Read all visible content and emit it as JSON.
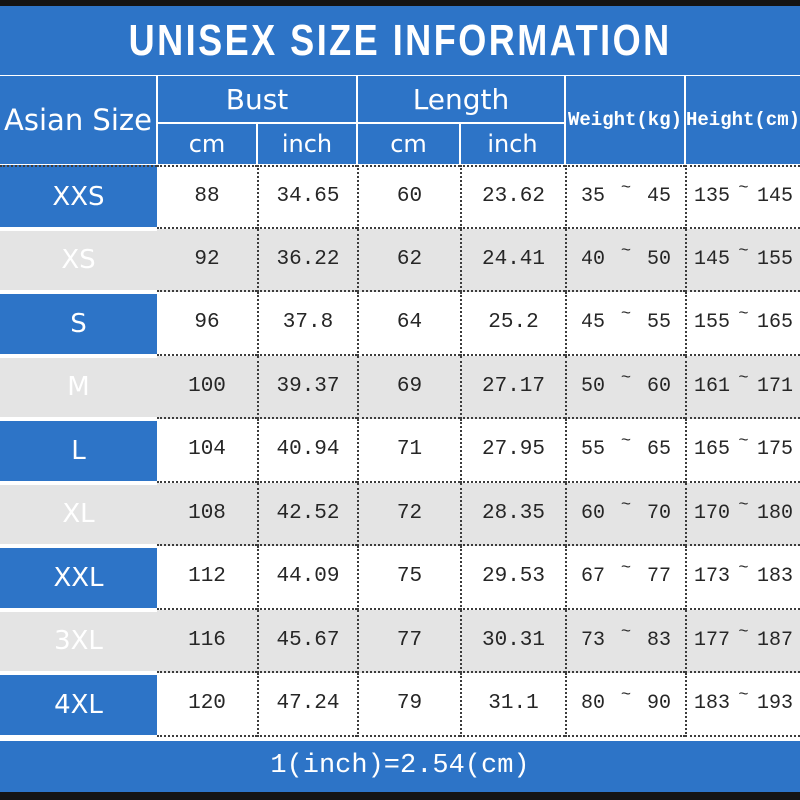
{
  "title": "UNISEX SIZE INFORMATION",
  "tilde": "~",
  "footer_note": "1(inch)=2.54(cm)",
  "colors": {
    "accent_blue": "#2d74c7",
    "alt_row_gray": "#e4e4e4",
    "edge_black": "#141414"
  },
  "table": {
    "corner_label": "Asian Size",
    "bust_group_label": "Bust",
    "length_group_label": "Length",
    "weight_label": "Weight(kg)",
    "height_label": "Height(cm)",
    "sub_headers": {
      "bust_cm": "cm",
      "bust_inch": "inch",
      "length_cm": "cm",
      "length_inch": "inch"
    },
    "rows": [
      {
        "size": "XXS",
        "bust_cm": "88",
        "bust_inch": "34.65",
        "length_cm": "60",
        "length_inch": "23.62",
        "weight_min": "35",
        "weight_max": "45",
        "height_min": "135",
        "height_max": "145"
      },
      {
        "size": "XS",
        "bust_cm": "92",
        "bust_inch": "36.22",
        "length_cm": "62",
        "length_inch": "24.41",
        "weight_min": "40",
        "weight_max": "50",
        "height_min": "145",
        "height_max": "155"
      },
      {
        "size": "S",
        "bust_cm": "96",
        "bust_inch": "37.8",
        "length_cm": "64",
        "length_inch": "25.2",
        "weight_min": "45",
        "weight_max": "55",
        "height_min": "155",
        "height_max": "165"
      },
      {
        "size": "M",
        "bust_cm": "100",
        "bust_inch": "39.37",
        "length_cm": "69",
        "length_inch": "27.17",
        "weight_min": "50",
        "weight_max": "60",
        "height_min": "161",
        "height_max": "171"
      },
      {
        "size": "L",
        "bust_cm": "104",
        "bust_inch": "40.94",
        "length_cm": "71",
        "length_inch": "27.95",
        "weight_min": "55",
        "weight_max": "65",
        "height_min": "165",
        "height_max": "175"
      },
      {
        "size": "XL",
        "bust_cm": "108",
        "bust_inch": "42.52",
        "length_cm": "72",
        "length_inch": "28.35",
        "weight_min": "60",
        "weight_max": "70",
        "height_min": "170",
        "height_max": "180"
      },
      {
        "size": "XXL",
        "bust_cm": "112",
        "bust_inch": "44.09",
        "length_cm": "75",
        "length_inch": "29.53",
        "weight_min": "67",
        "weight_max": "77",
        "height_min": "173",
        "height_max": "183"
      },
      {
        "size": "3XL",
        "bust_cm": "116",
        "bust_inch": "45.67",
        "length_cm": "77",
        "length_inch": "30.31",
        "weight_min": "73",
        "weight_max": "83",
        "height_min": "177",
        "height_max": "187"
      },
      {
        "size": "4XL",
        "bust_cm": "120",
        "bust_inch": "47.24",
        "length_cm": "79",
        "length_inch": "31.1",
        "weight_min": "80",
        "weight_max": "90",
        "height_min": "183",
        "height_max": "193"
      }
    ]
  }
}
